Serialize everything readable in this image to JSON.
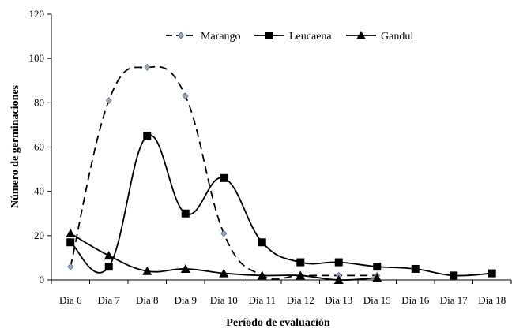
{
  "chart_data": {
    "type": "line",
    "xlabel": "Período de evaluación",
    "ylabel": "Número de germinaciones",
    "categories": [
      "Dia 6",
      "Dia 7",
      "Dia 8",
      "Dia 9",
      "Dia 10",
      "Dia 11",
      "Dia 12",
      "Dia 13",
      "Dia 15",
      "Dia 16",
      "Dia 17",
      "Dia 18"
    ],
    "ylim": [
      0,
      120
    ],
    "yticks": [
      "0",
      "20",
      "40",
      "60",
      "80",
      "100",
      "120"
    ],
    "grid": false,
    "legend_position": "top",
    "series": [
      {
        "name": "Marango",
        "marker": "diamond",
        "line_style": "dashed",
        "color": "#000000",
        "marker_fill": "#8fa8c8",
        "values": [
          6,
          81,
          96,
          83,
          21,
          2,
          2,
          2,
          2,
          null,
          null,
          null
        ]
      },
      {
        "name": "Leucaena",
        "marker": "square",
        "line_style": "solid",
        "color": "#000000",
        "values": [
          17,
          6,
          65,
          30,
          46,
          17,
          8,
          8,
          6,
          5,
          2,
          3
        ]
      },
      {
        "name": "Gandul",
        "marker": "triangle",
        "line_style": "solid",
        "color": "#000000",
        "values": [
          21,
          11,
          4,
          5,
          3,
          2,
          2,
          0,
          1,
          null,
          null,
          null
        ]
      }
    ]
  }
}
